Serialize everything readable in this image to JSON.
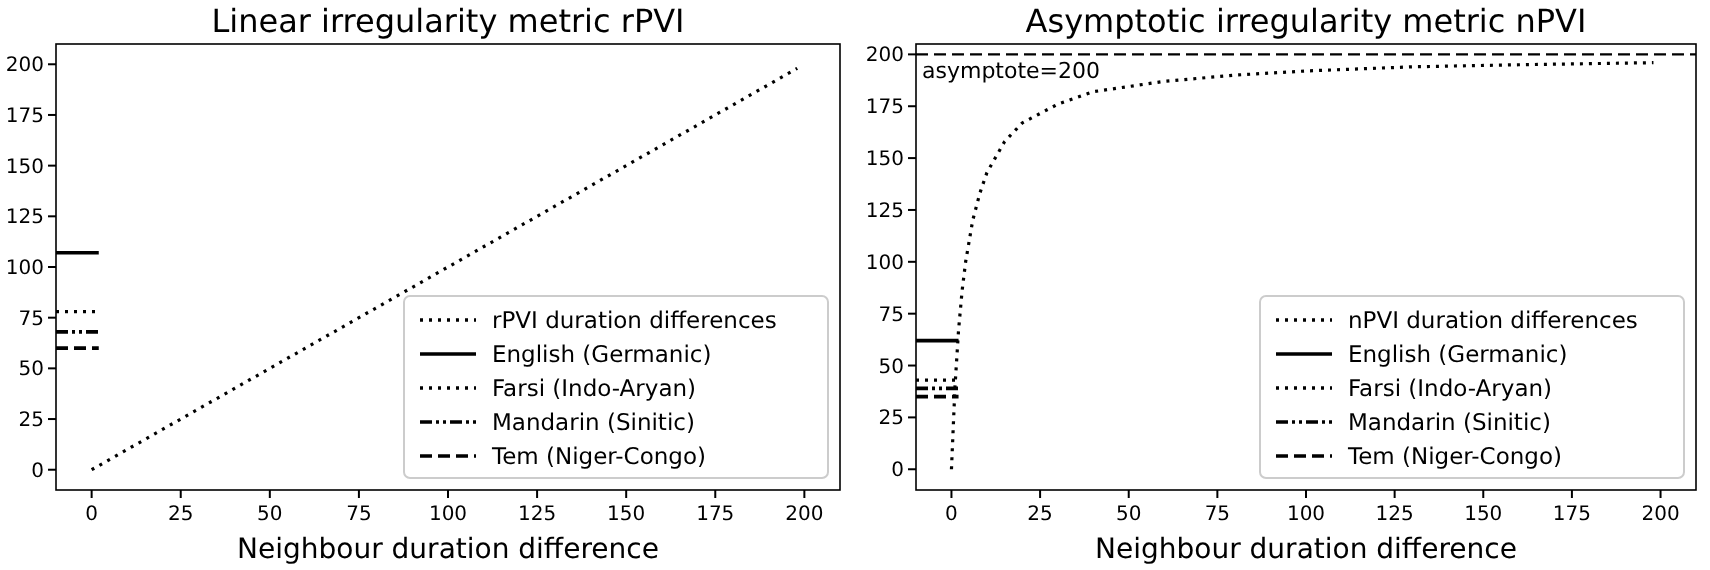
{
  "chart_data": [
    {
      "type": "line",
      "title": "Linear irregularity metric rPVI",
      "xlabel": "Neighbour duration difference",
      "xlim": [
        -10,
        210
      ],
      "ylim": [
        -10,
        210
      ],
      "xticks": [
        0,
        25,
        50,
        75,
        100,
        125,
        150,
        175,
        200
      ],
      "yticks": [
        0,
        25,
        50,
        75,
        100,
        125,
        150,
        175,
        200
      ],
      "legend": "bottom right",
      "grid": false,
      "series": [
        {
          "name": "rPVI duration differences",
          "color": "#000000",
          "line_style": "dotted",
          "x": [
            0,
            198
          ],
          "values": [
            0,
            198
          ]
        },
        {
          "name": "English (Germanic)",
          "color": "#000000",
          "line_style": "solid",
          "x": [
            -10,
            2
          ],
          "values": [
            107,
            107
          ]
        },
        {
          "name": "Farsi (Indo-Aryan)",
          "color": "#000000",
          "line_style": "dotted",
          "x": [
            -10,
            2
          ],
          "values": [
            78,
            78
          ]
        },
        {
          "name": "Mandarin (Sinitic)",
          "color": "#000000",
          "line_style": "dashdotdot",
          "x": [
            -10,
            2
          ],
          "values": [
            68,
            68
          ]
        },
        {
          "name": "Tem (Niger-Congo)",
          "color": "#000000",
          "line_style": "dashed",
          "x": [
            -10,
            2
          ],
          "values": [
            60,
            60
          ]
        }
      ]
    },
    {
      "type": "line",
      "title": "Asymptotic irregularity metric nPVI",
      "xlabel": "Neighbour duration difference",
      "xlim": [
        -10,
        210
      ],
      "ylim": [
        -10,
        205
      ],
      "xticks": [
        0,
        25,
        50,
        75,
        100,
        125,
        150,
        175,
        200
      ],
      "yticks": [
        0,
        25,
        50,
        75,
        100,
        125,
        150,
        175,
        200
      ],
      "legend": "bottom right",
      "grid": false,
      "ref_lines": [
        {
          "axis": "y",
          "value": 200,
          "label": "asymptote=200",
          "line_style": "dashed",
          "color": "#000000"
        }
      ],
      "series": [
        {
          "name": "nPVI duration differences",
          "color": "#000000",
          "line_style": "dotted",
          "x": [
            0,
            1,
            2,
            3,
            4,
            6,
            8,
            10,
            15,
            20,
            30,
            40,
            60,
            80,
            100,
            130,
            160,
            198
          ],
          "values": [
            0,
            40,
            67,
            86,
            100,
            120,
            133,
            143,
            158,
            167,
            176,
            182,
            187,
            190,
            192,
            194,
            195,
            196
          ]
        },
        {
          "name": "English (Germanic)",
          "color": "#000000",
          "line_style": "solid",
          "x": [
            -10,
            2
          ],
          "values": [
            62,
            62
          ]
        },
        {
          "name": "Farsi (Indo-Aryan)",
          "color": "#000000",
          "line_style": "dotted",
          "x": [
            -10,
            2
          ],
          "values": [
            43,
            43
          ]
        },
        {
          "name": "Mandarin (Sinitic)",
          "color": "#000000",
          "line_style": "dashdotdot",
          "x": [
            -10,
            2
          ],
          "values": [
            39,
            39
          ]
        },
        {
          "name": "Tem (Niger-Congo)",
          "color": "#000000",
          "line_style": "dashed",
          "x": [
            -10,
            2
          ],
          "values": [
            35,
            35
          ]
        }
      ]
    }
  ]
}
